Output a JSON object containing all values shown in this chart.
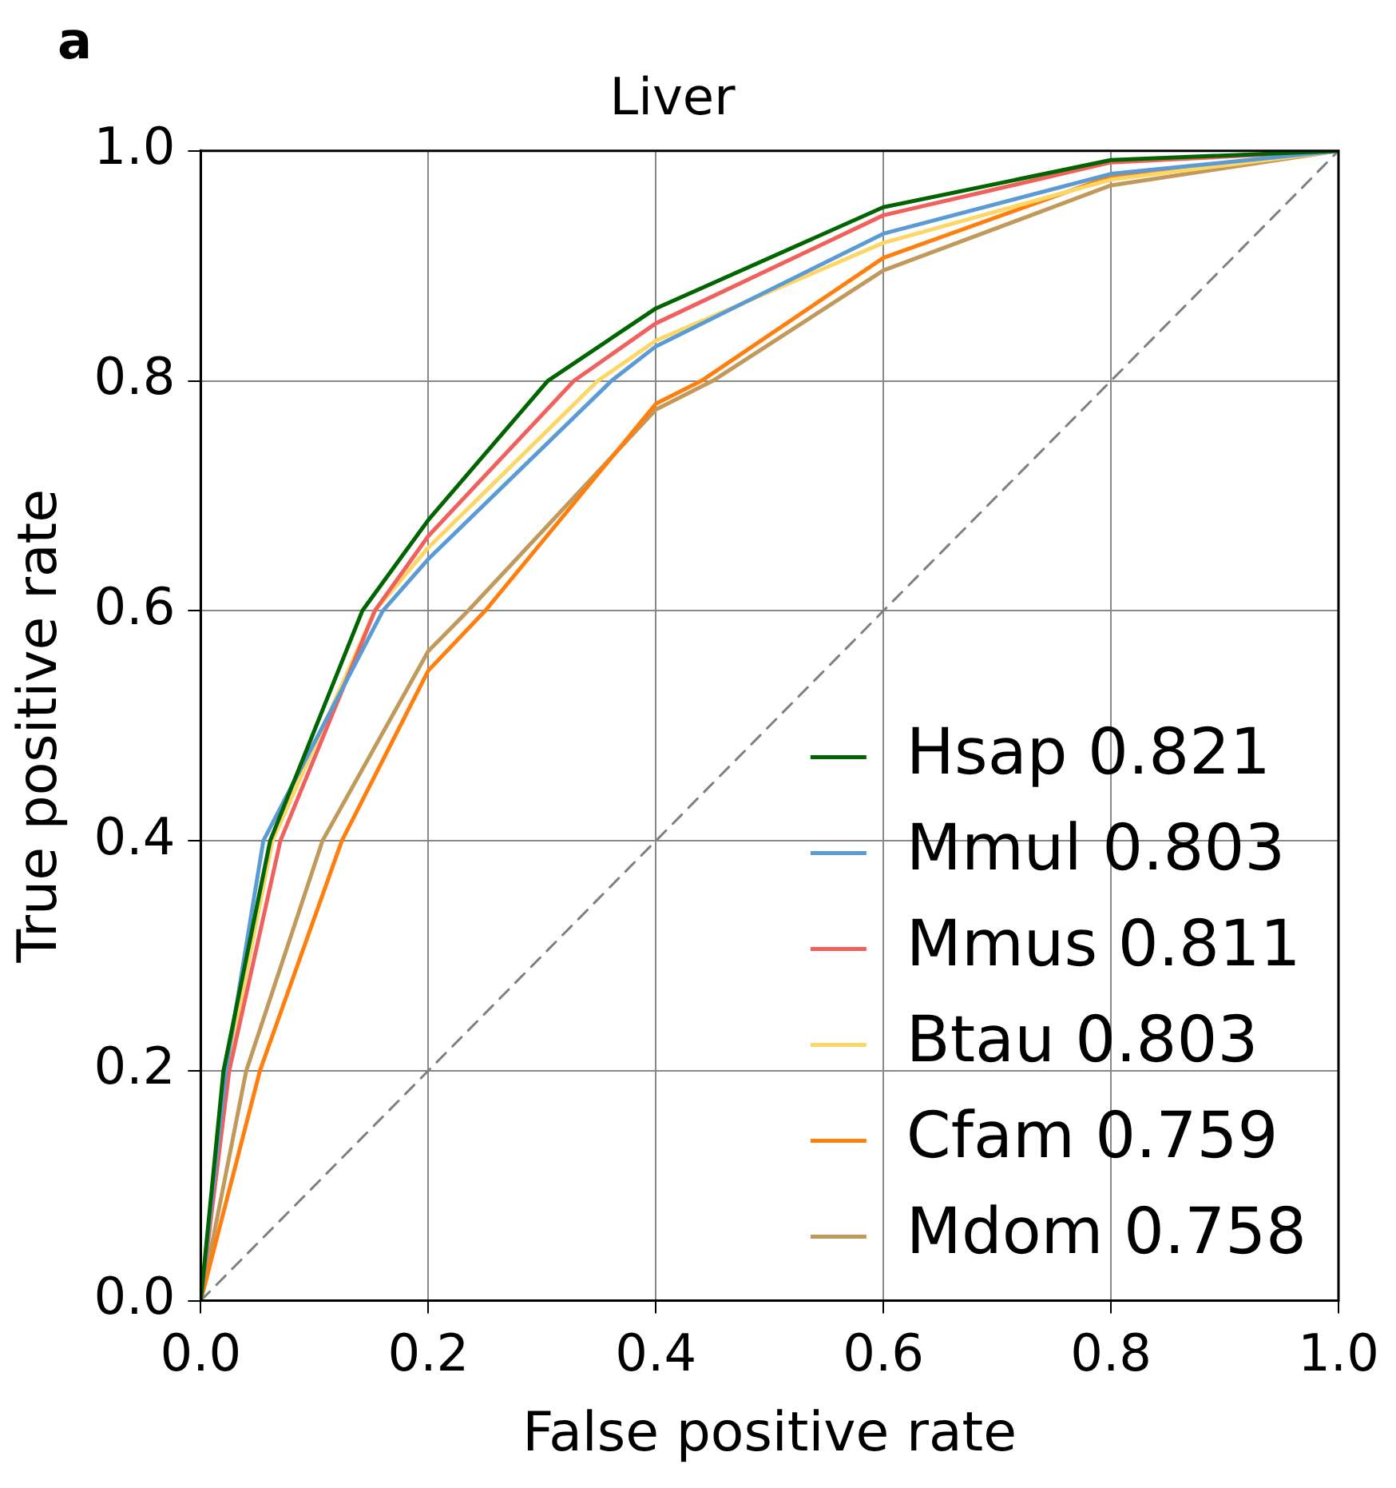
{
  "chart_data": {
    "type": "line",
    "title": "Liver",
    "xlabel": "False positive rate",
    "ylabel": "True positive rate",
    "annotations": [
      "a"
    ],
    "xlim": [
      0,
      1
    ],
    "ylim": [
      0,
      1
    ],
    "xticks": [
      {
        "value": 0,
        "label": "0.0"
      },
      {
        "value": 0.2,
        "label": "0.2"
      },
      {
        "value": 0.4,
        "label": "0.4"
      },
      {
        "value": 0.6,
        "label": "0.6"
      },
      {
        "value": 0.8,
        "label": "0.8"
      },
      {
        "value": 1,
        "label": "1.0"
      }
    ],
    "yticks": [
      {
        "value": 0,
        "label": "0.0"
      },
      {
        "value": 0.2,
        "label": "0.2"
      },
      {
        "value": 0.4,
        "label": "0.4"
      },
      {
        "value": 0.6,
        "label": "0.6"
      },
      {
        "value": 0.8,
        "label": "0.8"
      },
      {
        "value": 1,
        "label": "1.0"
      }
    ],
    "grid": true,
    "legend": "bottom right",
    "marker": "none",
    "series": [
      {
        "name": "Hsap 0.821",
        "color": "#006400",
        "x": [
          0,
          0.02,
          0.061,
          0.142,
          0.2,
          0.305,
          0.4,
          0.6,
          0.8,
          1
        ],
        "values": [
          0,
          0.2,
          0.4,
          0.6,
          0.679,
          0.8,
          0.863,
          0.951,
          0.992,
          1
        ]
      },
      {
        "name": "Mmul 0.803",
        "color": "#5b9bd5",
        "x": [
          0,
          0.022,
          0.055,
          0.16,
          0.2,
          0.361,
          0.4,
          0.6,
          0.8,
          1
        ],
        "values": [
          0,
          0.2,
          0.4,
          0.6,
          0.645,
          0.8,
          0.83,
          0.928,
          0.98,
          1
        ]
      },
      {
        "name": "Mmus 0.811",
        "color": "#f0605d",
        "x": [
          0,
          0.025,
          0.07,
          0.153,
          0.2,
          0.328,
          0.4,
          0.6,
          0.8,
          1
        ],
        "values": [
          0,
          0.2,
          0.4,
          0.6,
          0.665,
          0.8,
          0.85,
          0.944,
          0.99,
          1
        ]
      },
      {
        "name": "Btau 0.803",
        "color": "#fdd766",
        "x": [
          0,
          0.023,
          0.063,
          0.153,
          0.2,
          0.349,
          0.4,
          0.6,
          0.8,
          1
        ],
        "values": [
          0,
          0.2,
          0.4,
          0.6,
          0.655,
          0.8,
          0.835,
          0.92,
          0.975,
          1
        ]
      },
      {
        "name": "Cfam 0.759",
        "color": "#ff7f0e",
        "x": [
          0,
          0.052,
          0.124,
          0.2,
          0.25,
          0.4,
          0.44,
          0.6,
          0.8,
          1
        ],
        "values": [
          0,
          0.2,
          0.4,
          0.548,
          0.6,
          0.78,
          0.8,
          0.907,
          0.978,
          1
        ]
      },
      {
        "name": "Mdom 0.758",
        "color": "#c19a5b",
        "x": [
          0,
          0.04,
          0.107,
          0.2,
          0.235,
          0.4,
          0.45,
          0.6,
          0.8,
          1
        ],
        "values": [
          0,
          0.2,
          0.4,
          0.565,
          0.6,
          0.775,
          0.8,
          0.896,
          0.97,
          1
        ]
      },
      {
        "color": "#808080",
        "line_style": "dashed",
        "x": [
          0,
          1
        ],
        "values": [
          0,
          1
        ]
      }
    ]
  }
}
